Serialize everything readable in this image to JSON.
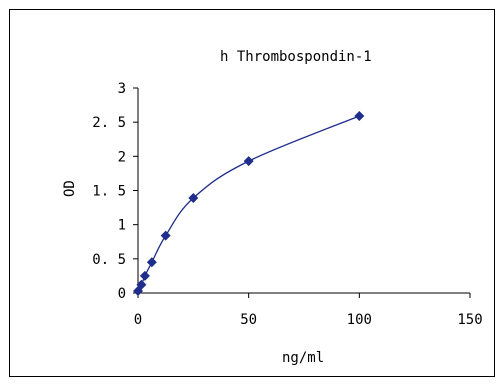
{
  "chart_data": {
    "type": "scatter",
    "title": "h Thrombospondin-1",
    "xlabel": "ng/ml",
    "ylabel": "OD",
    "xlim": [
      0,
      150
    ],
    "ylim": [
      0,
      3
    ],
    "xticks": [
      0,
      50,
      100,
      150
    ],
    "xtick_labels": [
      "0",
      "50",
      "100",
      "150"
    ],
    "yticks": [
      0,
      0.5,
      1,
      1.5,
      2,
      2.5,
      3
    ],
    "ytick_labels": [
      "0",
      "0. 5",
      "1",
      "1. 5",
      "2",
      "2. 5",
      "3"
    ],
    "grid": false,
    "legend": "none",
    "series": [
      {
        "color": "#1f2e8c",
        "marker": "diamond",
        "line": "smooth",
        "x": [
          0,
          1.56,
          3.12,
          6.25,
          12.5,
          25,
          50,
          100
        ],
        "y": [
          0.03,
          0.12,
          0.25,
          0.45,
          0.84,
          1.39,
          1.93,
          2.59
        ]
      }
    ]
  }
}
